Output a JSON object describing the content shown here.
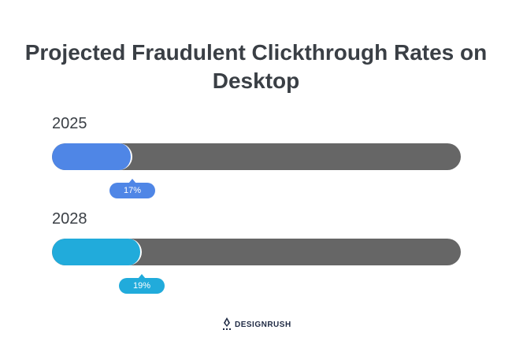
{
  "chart_data": {
    "type": "bar",
    "title": "Projected Fraudulent Clickthrough Rates on Desktop",
    "categories": [
      "2025",
      "2028"
    ],
    "values": [
      17,
      19
    ],
    "value_labels": [
      "17%",
      "19%"
    ],
    "unit": "%",
    "xlim": [
      0,
      100
    ],
    "orientation": "horizontal",
    "colors": [
      "#4f86e6",
      "#21abdb"
    ],
    "track_color": "#666666"
  },
  "brand": {
    "name": "DESIGNRUSH",
    "icon": "designrush-logo-icon"
  }
}
